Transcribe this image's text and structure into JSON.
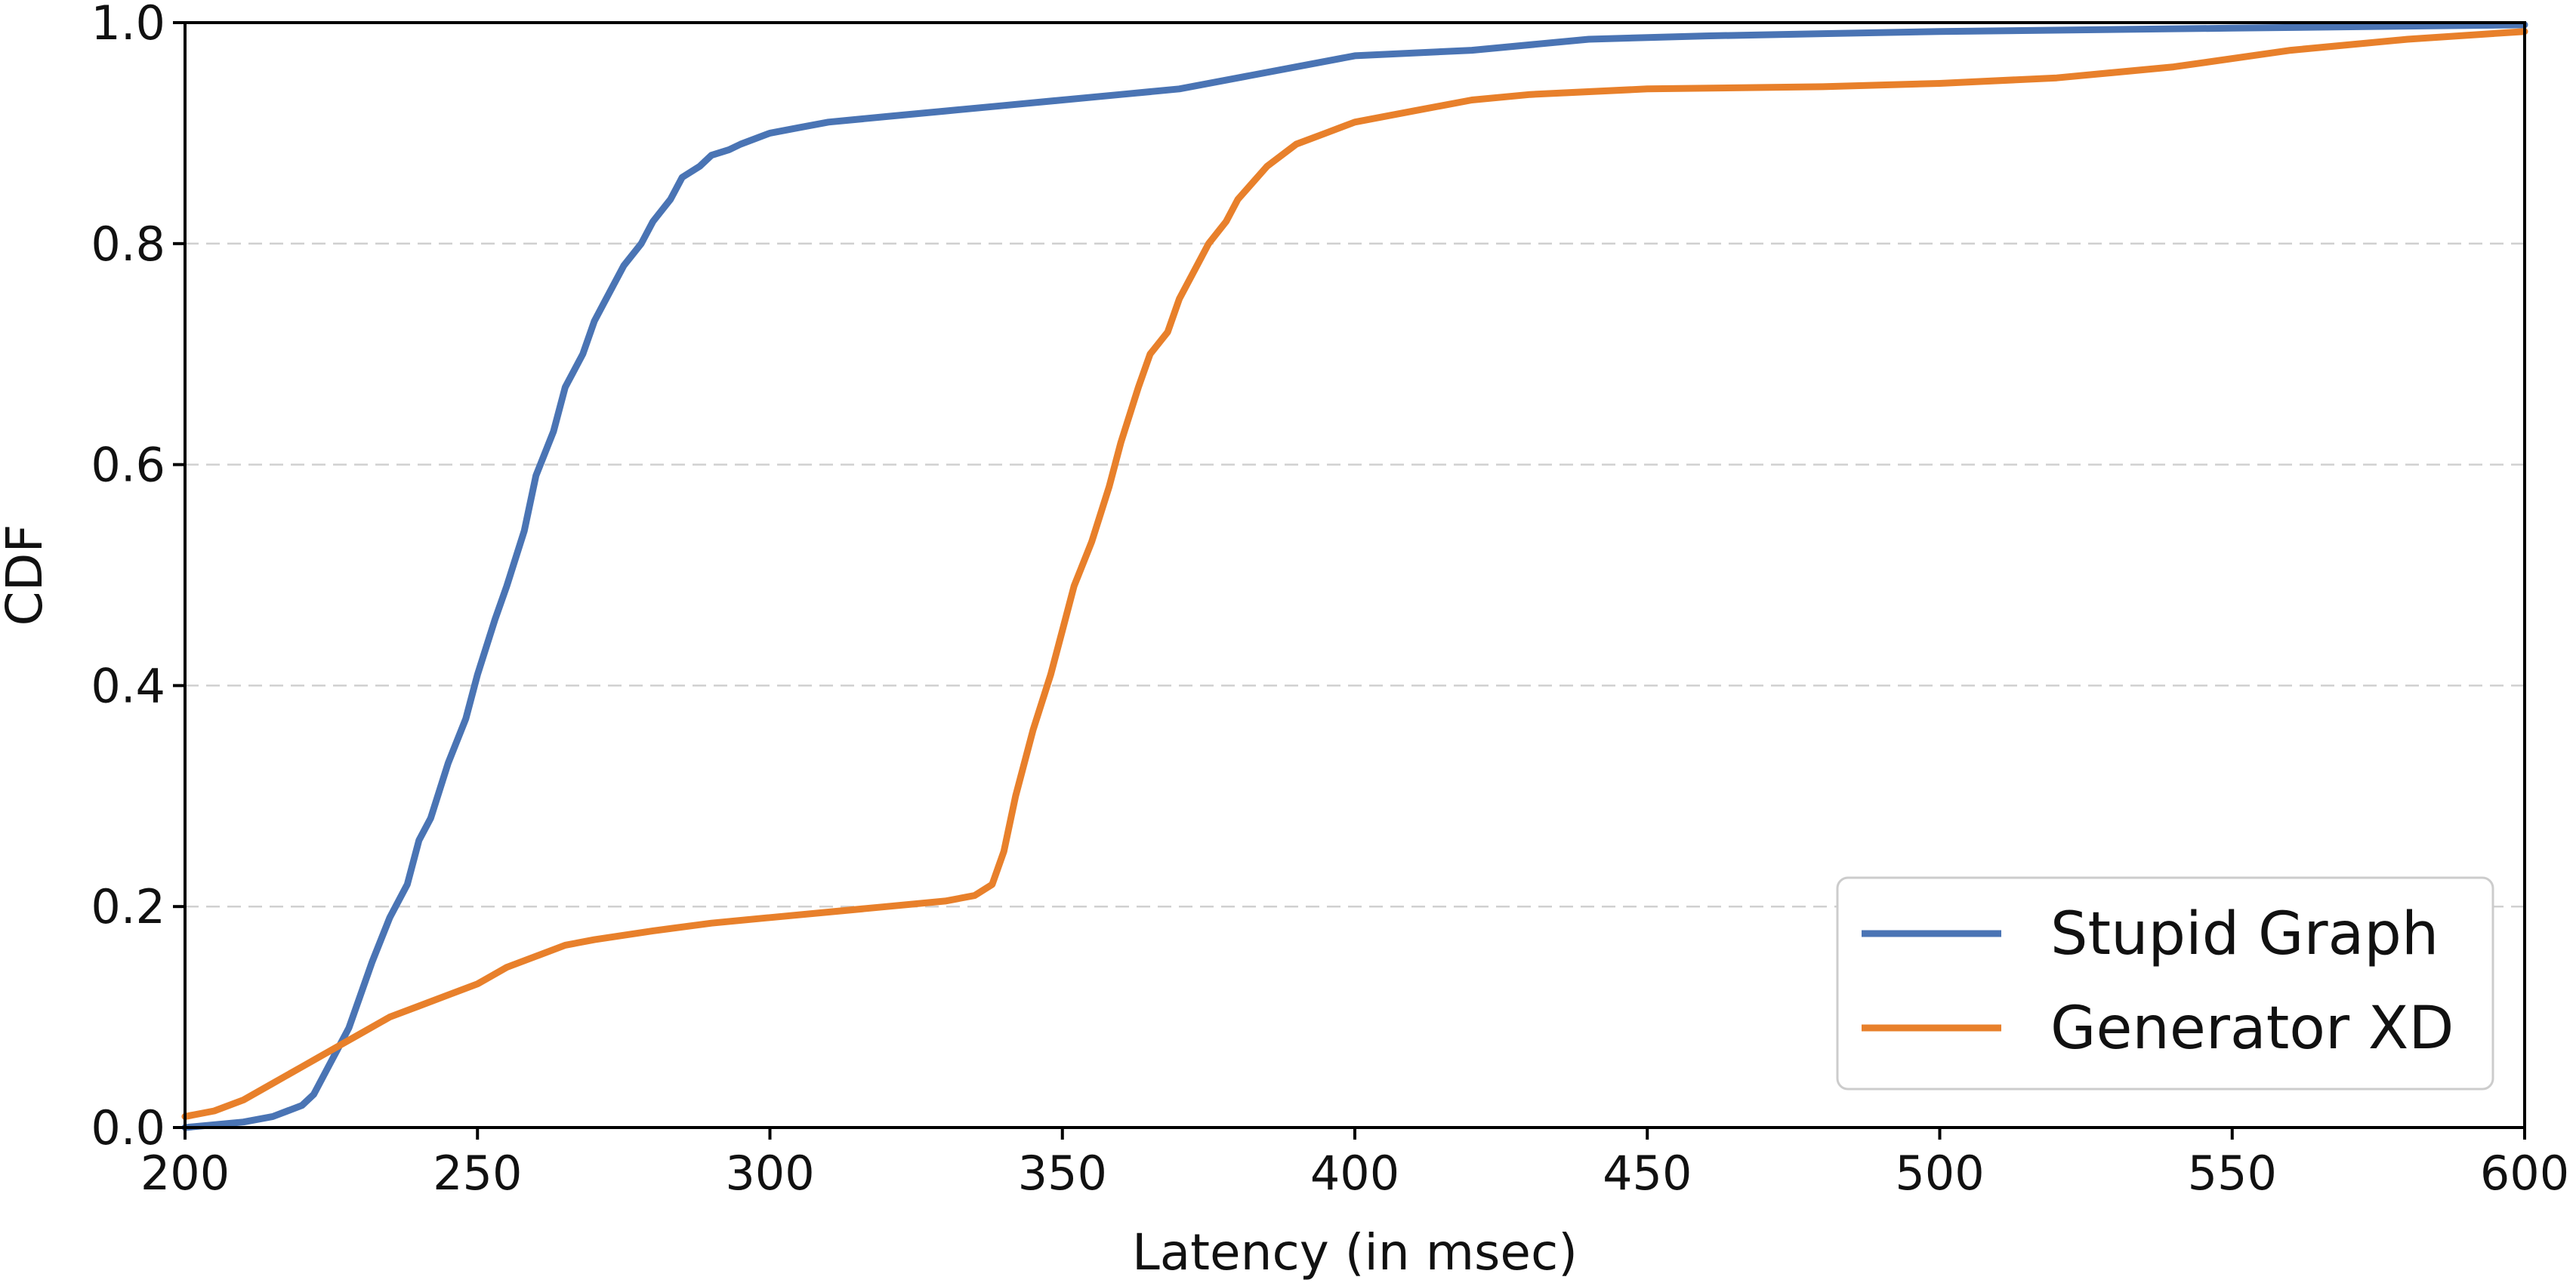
{
  "chart_data": {
    "type": "line",
    "title": "",
    "xlabel": "Latency (in msec)",
    "ylabel": "CDF",
    "xlim": [
      200,
      600
    ],
    "ylim": [
      0.0,
      1.0
    ],
    "xticks": [
      "200",
      "250",
      "300",
      "350",
      "400",
      "450",
      "500",
      "550",
      "600"
    ],
    "yticks": [
      "0.0",
      "0.2",
      "0.4",
      "0.6",
      "0.8",
      "1.0"
    ],
    "grid": "horizontal dashed",
    "legend_position": "bottom-right",
    "series": [
      {
        "name": "Stupid Graph",
        "color": "#4a74b4",
        "x": [
          200,
          210,
          215,
          220,
          222,
          224,
          226,
          228,
          230,
          232,
          235,
          238,
          240,
          242,
          245,
          248,
          250,
          253,
          255,
          258,
          260,
          263,
          265,
          268,
          270,
          272,
          275,
          278,
          280,
          283,
          285,
          288,
          290,
          293,
          295,
          300,
          305,
          310,
          320,
          330,
          340,
          350,
          360,
          370,
          380,
          390,
          400,
          420,
          440,
          460,
          480,
          500,
          550,
          600
        ],
        "y": [
          0.0,
          0.005,
          0.01,
          0.02,
          0.03,
          0.05,
          0.07,
          0.09,
          0.12,
          0.15,
          0.19,
          0.22,
          0.26,
          0.28,
          0.33,
          0.37,
          0.41,
          0.46,
          0.49,
          0.54,
          0.59,
          0.63,
          0.67,
          0.7,
          0.73,
          0.75,
          0.78,
          0.8,
          0.82,
          0.84,
          0.86,
          0.87,
          0.88,
          0.885,
          0.89,
          0.9,
          0.905,
          0.91,
          0.915,
          0.92,
          0.925,
          0.93,
          0.935,
          0.94,
          0.95,
          0.96,
          0.97,
          0.975,
          0.985,
          0.988,
          0.99,
          0.992,
          0.995,
          0.998
        ]
      },
      {
        "name": "Generator XD",
        "color": "#e8802b",
        "x": [
          200,
          205,
          210,
          215,
          220,
          225,
          230,
          235,
          240,
          245,
          250,
          255,
          260,
          265,
          270,
          280,
          290,
          300,
          310,
          320,
          330,
          335,
          338,
          340,
          342,
          345,
          348,
          350,
          352,
          355,
          358,
          360,
          363,
          365,
          368,
          370,
          373,
          375,
          378,
          380,
          385,
          390,
          395,
          400,
          405,
          410,
          415,
          420,
          430,
          450,
          480,
          500,
          520,
          540,
          560,
          580,
          600
        ],
        "y": [
          0.01,
          0.015,
          0.025,
          0.04,
          0.055,
          0.07,
          0.085,
          0.1,
          0.11,
          0.12,
          0.13,
          0.145,
          0.155,
          0.165,
          0.17,
          0.178,
          0.185,
          0.19,
          0.195,
          0.2,
          0.205,
          0.21,
          0.22,
          0.25,
          0.3,
          0.36,
          0.41,
          0.45,
          0.49,
          0.53,
          0.58,
          0.62,
          0.67,
          0.7,
          0.72,
          0.75,
          0.78,
          0.8,
          0.82,
          0.84,
          0.87,
          0.89,
          0.9,
          0.91,
          0.915,
          0.92,
          0.925,
          0.93,
          0.935,
          0.94,
          0.942,
          0.945,
          0.95,
          0.96,
          0.975,
          0.985,
          0.992
        ]
      }
    ]
  }
}
